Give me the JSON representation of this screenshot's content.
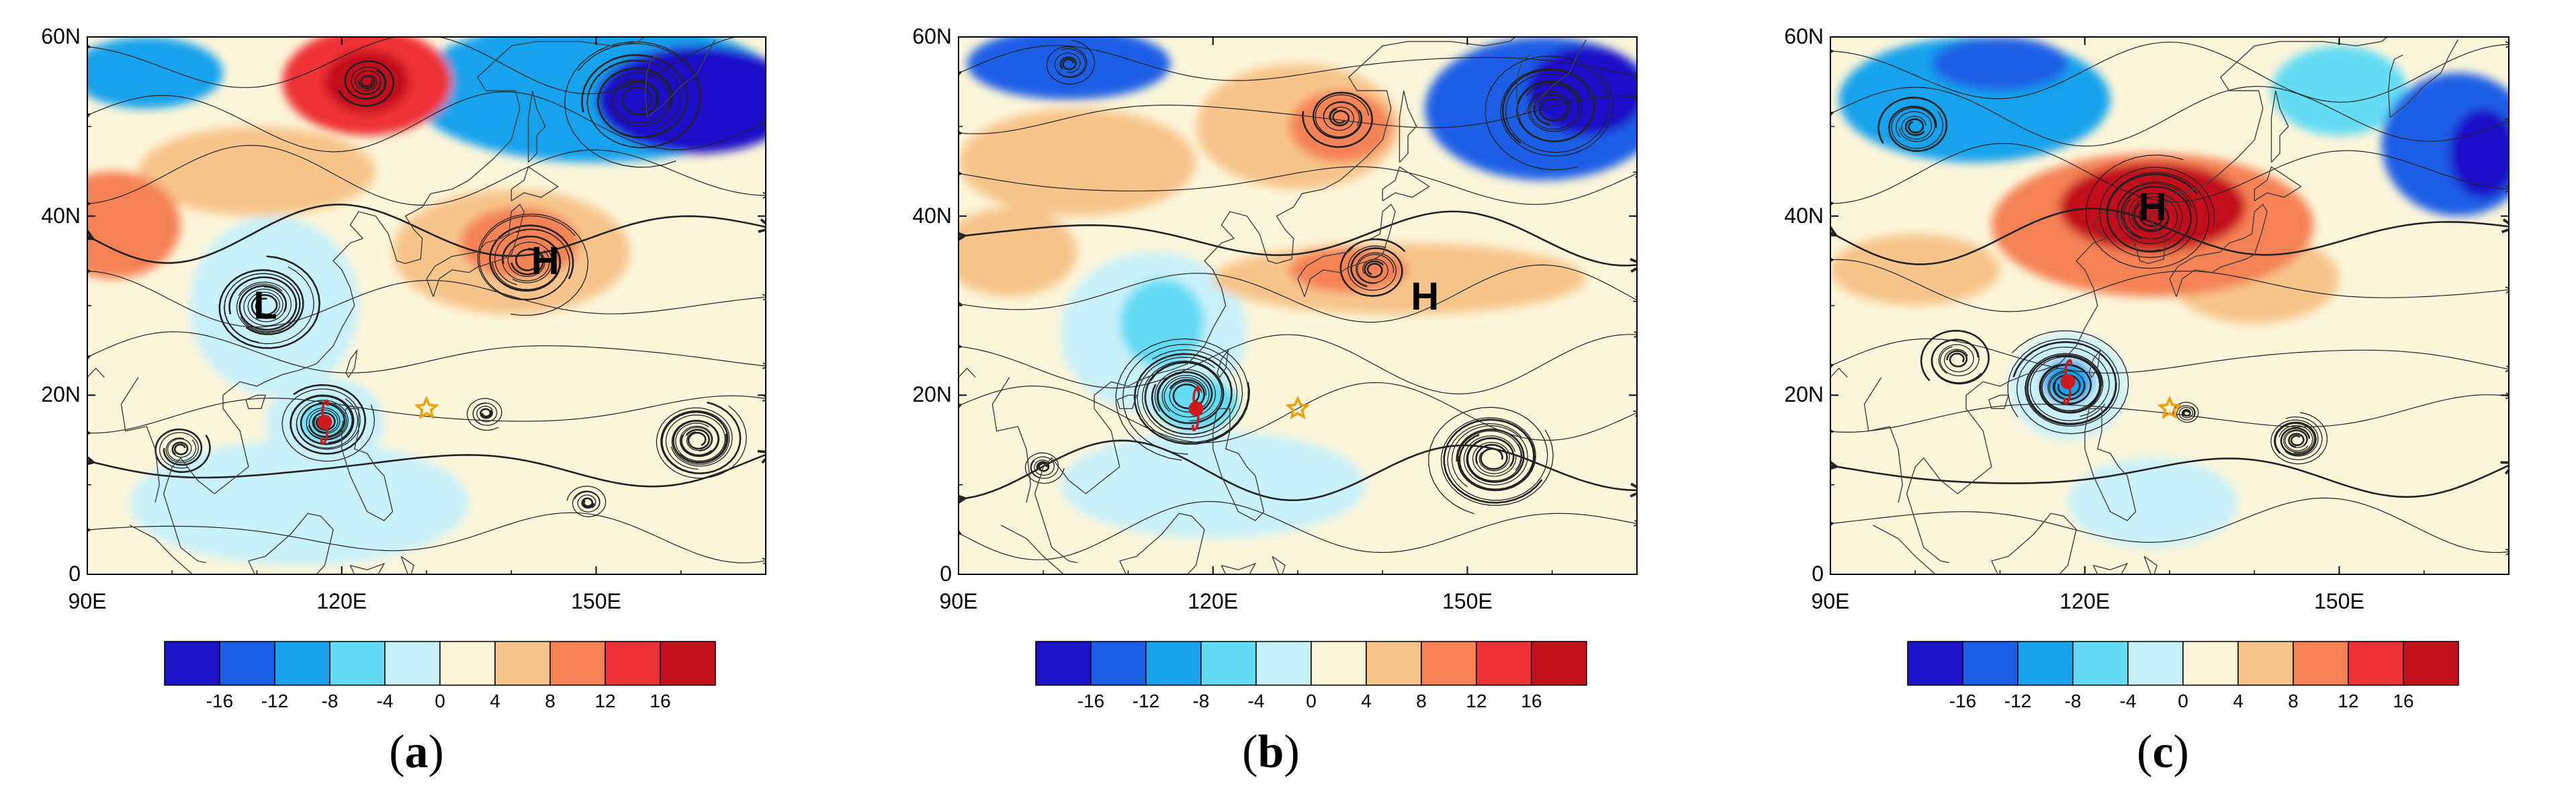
{
  "figure": {
    "panels": [
      {
        "id": "a",
        "caption_open": "(",
        "caption_letter": "a",
        "caption_close": ")",
        "markers": [
          {
            "label": "H",
            "lon": 144,
            "lat": 35
          },
          {
            "label": "L",
            "lon": 111,
            "lat": 30
          }
        ],
        "typhoon": {
          "lon": 118,
          "lat": 17
        },
        "star": {
          "lon": 130,
          "lat": 18.5
        },
        "blobs": [
          {
            "lon": 123,
            "lat": 55,
            "rx": 10,
            "ry": 6,
            "v": 14
          },
          {
            "lon": 123,
            "lat": 55,
            "rx": 5,
            "ry": 3.5,
            "v": 18
          },
          {
            "lon": 150,
            "lat": 54,
            "rx": 22,
            "ry": 8,
            "v": -12
          },
          {
            "lon": 162,
            "lat": 53,
            "rx": 12,
            "ry": 6,
            "v": -18
          },
          {
            "lon": 97,
            "lat": 56,
            "rx": 9,
            "ry": 4,
            "v": -10
          },
          {
            "lon": 93,
            "lat": 39,
            "rx": 8,
            "ry": 6,
            "v": 11
          },
          {
            "lon": 110,
            "lat": 45,
            "rx": 14,
            "ry": 5,
            "v": 6
          },
          {
            "lon": 140,
            "lat": 36,
            "rx": 14,
            "ry": 7,
            "v": 6
          },
          {
            "lon": 141,
            "lat": 37,
            "rx": 7,
            "ry": 4,
            "v": 11
          },
          {
            "lon": 112,
            "lat": 30,
            "rx": 10,
            "ry": 10,
            "v": -3
          },
          {
            "lon": 118,
            "lat": 17,
            "rx": 7,
            "ry": 5,
            "v": -4
          },
          {
            "lon": 118,
            "lat": 17,
            "rx": 3,
            "ry": 2.5,
            "v": -7
          },
          {
            "lon": 115,
            "lat": 8,
            "rx": 20,
            "ry": 7,
            "v": -3
          }
        ],
        "vortices": [
          {
            "lon": 111,
            "lat": 30,
            "r": 7,
            "n": 7,
            "dir": 1
          },
          {
            "lon": 118,
            "lat": 17,
            "r": 6,
            "n": 8,
            "dir": 1
          },
          {
            "lon": 162,
            "lat": 15,
            "r": 6,
            "n": 8,
            "dir": 1
          },
          {
            "lon": 142,
            "lat": 35,
            "r": 8,
            "n": 6,
            "dir": -1
          },
          {
            "lon": 123,
            "lat": 55,
            "r": 4,
            "n": 4,
            "dir": -1
          },
          {
            "lon": 155,
            "lat": 53,
            "r": 10,
            "n": 6,
            "dir": 1
          },
          {
            "lon": 101,
            "lat": 14,
            "r": 4,
            "n": 4,
            "dir": 1
          },
          {
            "lon": 137,
            "lat": 18,
            "r": 3,
            "n": 3,
            "dir": 1
          },
          {
            "lon": 149,
            "lat": 8,
            "r": 3,
            "n": 3,
            "dir": 1
          }
        ]
      },
      {
        "id": "b",
        "caption_open": "(",
        "caption_letter": "b",
        "caption_close": ")",
        "markers": [
          {
            "label": "H",
            "lon": 145,
            "lat": 31
          }
        ],
        "typhoon": {
          "lon": 118,
          "lat": 18.5
        },
        "star": {
          "lon": 130,
          "lat": 18.5
        },
        "blobs": [
          {
            "lon": 103,
            "lat": 57,
            "rx": 12,
            "ry": 4,
            "v": -13
          },
          {
            "lon": 104,
            "lat": 46,
            "rx": 14,
            "ry": 6,
            "v": 6
          },
          {
            "lon": 130,
            "lat": 50,
            "rx": 12,
            "ry": 7,
            "v": 6
          },
          {
            "lon": 135,
            "lat": 50,
            "rx": 6,
            "ry": 4,
            "v": 10
          },
          {
            "lon": 159,
            "lat": 52,
            "rx": 14,
            "ry": 8,
            "v": -13
          },
          {
            "lon": 164,
            "lat": 54,
            "rx": 7,
            "ry": 5,
            "v": -18
          },
          {
            "lon": 96,
            "lat": 36,
            "rx": 8,
            "ry": 5,
            "v": 4
          },
          {
            "lon": 142,
            "lat": 33,
            "rx": 22,
            "ry": 4,
            "v": 5
          },
          {
            "lon": 136,
            "lat": 34,
            "rx": 7,
            "ry": 2.5,
            "v": 9
          },
          {
            "lon": 113,
            "lat": 27,
            "rx": 11,
            "ry": 9,
            "v": -3
          },
          {
            "lon": 114,
            "lat": 28,
            "rx": 5,
            "ry": 5,
            "v": -6
          },
          {
            "lon": 118,
            "lat": 19,
            "rx": 5,
            "ry": 3,
            "v": -7
          },
          {
            "lon": 120,
            "lat": 10,
            "rx": 18,
            "ry": 6,
            "v": -2
          }
        ],
        "vortices": [
          {
            "lon": 117,
            "lat": 20,
            "r": 9,
            "n": 9,
            "dir": 1
          },
          {
            "lon": 153,
            "lat": 13,
            "r": 8,
            "n": 9,
            "dir": 1
          },
          {
            "lon": 135,
            "lat": 51,
            "r": 5,
            "n": 4,
            "dir": -1
          },
          {
            "lon": 103,
            "lat": 57,
            "r": 4,
            "n": 3,
            "dir": 1
          },
          {
            "lon": 160,
            "lat": 52,
            "r": 9,
            "n": 6,
            "dir": 1
          },
          {
            "lon": 139,
            "lat": 34,
            "r": 5,
            "n": 4,
            "dir": -1
          },
          {
            "lon": 100,
            "lat": 12,
            "r": 3,
            "n": 3,
            "dir": 1
          }
        ]
      },
      {
        "id": "c",
        "caption_open": "(",
        "caption_letter": "c",
        "caption_close": ")",
        "markers": [
          {
            "label": "H",
            "lon": 128,
            "lat": 41
          }
        ],
        "typhoon": {
          "lon": 118,
          "lat": 21.5
        },
        "star": {
          "lon": 130,
          "lat": 18.5
        },
        "blobs": [
          {
            "lon": 107,
            "lat": 53,
            "rx": 16,
            "ry": 7,
            "v": -10
          },
          {
            "lon": 110,
            "lat": 57,
            "rx": 8,
            "ry": 3,
            "v": -15
          },
          {
            "lon": 164,
            "lat": 48,
            "rx": 9,
            "ry": 8,
            "v": -14
          },
          {
            "lon": 167,
            "lat": 47,
            "rx": 4,
            "ry": 5,
            "v": -18
          },
          {
            "lon": 150,
            "lat": 54,
            "rx": 8,
            "ry": 5,
            "v": -5
          },
          {
            "lon": 128,
            "lat": 39,
            "rx": 19,
            "ry": 8,
            "v": 10
          },
          {
            "lon": 128,
            "lat": 41,
            "rx": 11,
            "ry": 5,
            "v": 16
          },
          {
            "lon": 100,
            "lat": 34,
            "rx": 10,
            "ry": 4,
            "v": 5
          },
          {
            "lon": 140,
            "lat": 33,
            "rx": 10,
            "ry": 5,
            "v": 6
          },
          {
            "lon": 118,
            "lat": 21,
            "rx": 7,
            "ry": 6,
            "v": -4
          },
          {
            "lon": 118,
            "lat": 21.5,
            "rx": 3,
            "ry": 2.5,
            "v": -9
          },
          {
            "lon": 128,
            "lat": 8,
            "rx": 10,
            "ry": 5,
            "v": -2
          }
        ],
        "vortices": [
          {
            "lon": 118,
            "lat": 21,
            "r": 8,
            "n": 9,
            "dir": 1
          },
          {
            "lon": 145,
            "lat": 15,
            "r": 4,
            "n": 6,
            "dir": 1
          },
          {
            "lon": 132,
            "lat": 18,
            "r": 2,
            "n": 3,
            "dir": 1
          },
          {
            "lon": 128,
            "lat": 40,
            "r": 9,
            "n": 6,
            "dir": -1
          },
          {
            "lon": 100,
            "lat": 50,
            "r": 5,
            "n": 4,
            "dir": 1
          },
          {
            "lon": 105,
            "lat": 24,
            "r": 5,
            "n": 4,
            "dir": 1
          }
        ]
      }
    ],
    "axes": {
      "y_labels": [
        "60N",
        "40N",
        "20N",
        "0"
      ],
      "y_values": [
        60,
        40,
        20,
        0
      ],
      "x_labels": [
        "90E",
        "120E",
        "150E"
      ],
      "x_values": [
        90,
        120,
        150
      ],
      "lon_range": [
        90,
        170
      ],
      "lat_range": [
        0,
        60
      ]
    },
    "colorbar": {
      "levels": [
        -16,
        -12,
        -8,
        -4,
        0,
        4,
        8,
        12,
        16
      ],
      "labels": [
        "-16",
        "-12",
        "-8",
        "-4",
        "0",
        "4",
        "8",
        "12",
        "16"
      ],
      "colors": [
        "#1d10c9",
        "#1a5ee6",
        "#19a2ec",
        "#63dcf4",
        "#c9f1fa",
        "#fdf6da",
        "#f7c58b",
        "#f58255",
        "#ee3136",
        "#c2101f"
      ]
    },
    "colors": {
      "land_outline": "#404040",
      "streamline": "#222222",
      "typhoon": "#d0191c",
      "star": "#f0a000"
    }
  }
}
